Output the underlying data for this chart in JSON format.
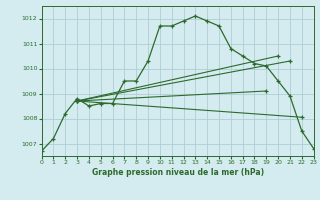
{
  "title": "Graphe pression niveau de la mer (hPa)",
  "bg_color": "#d4ecef",
  "grid_color": "#aecdd4",
  "line_color": "#2d6a2d",
  "xlim": [
    0,
    23
  ],
  "ylim": [
    1006.5,
    1012.5
  ],
  "xticks": [
    0,
    1,
    2,
    3,
    4,
    5,
    6,
    7,
    8,
    9,
    10,
    11,
    12,
    13,
    14,
    15,
    16,
    17,
    18,
    19,
    20,
    21,
    22,
    23
  ],
  "yticks": [
    1007,
    1008,
    1009,
    1010,
    1011,
    1012
  ],
  "main_x": [
    0,
    1,
    2,
    3,
    4,
    5,
    6,
    7,
    8,
    9,
    10,
    11,
    12,
    13,
    14,
    15,
    16,
    17,
    18,
    19,
    20,
    21,
    22,
    23
  ],
  "main_y": [
    1006.7,
    1007.2,
    1008.2,
    1008.8,
    1008.5,
    1008.6,
    1008.6,
    1009.5,
    1009.5,
    1010.3,
    1011.7,
    1011.7,
    1011.9,
    1012.1,
    1011.9,
    1011.7,
    1010.8,
    1010.5,
    1010.2,
    1010.1,
    1009.5,
    1008.9,
    1007.5,
    1006.8
  ],
  "fan_lines": [
    {
      "x": [
        3,
        20
      ],
      "y": [
        1008.7,
        1010.5
      ]
    },
    {
      "x": [
        3,
        21
      ],
      "y": [
        1008.7,
        1010.3
      ]
    },
    {
      "x": [
        3,
        22
      ],
      "y": [
        1008.7,
        1008.05
      ]
    },
    {
      "x": [
        3,
        19
      ],
      "y": [
        1008.7,
        1009.1
      ]
    }
  ]
}
